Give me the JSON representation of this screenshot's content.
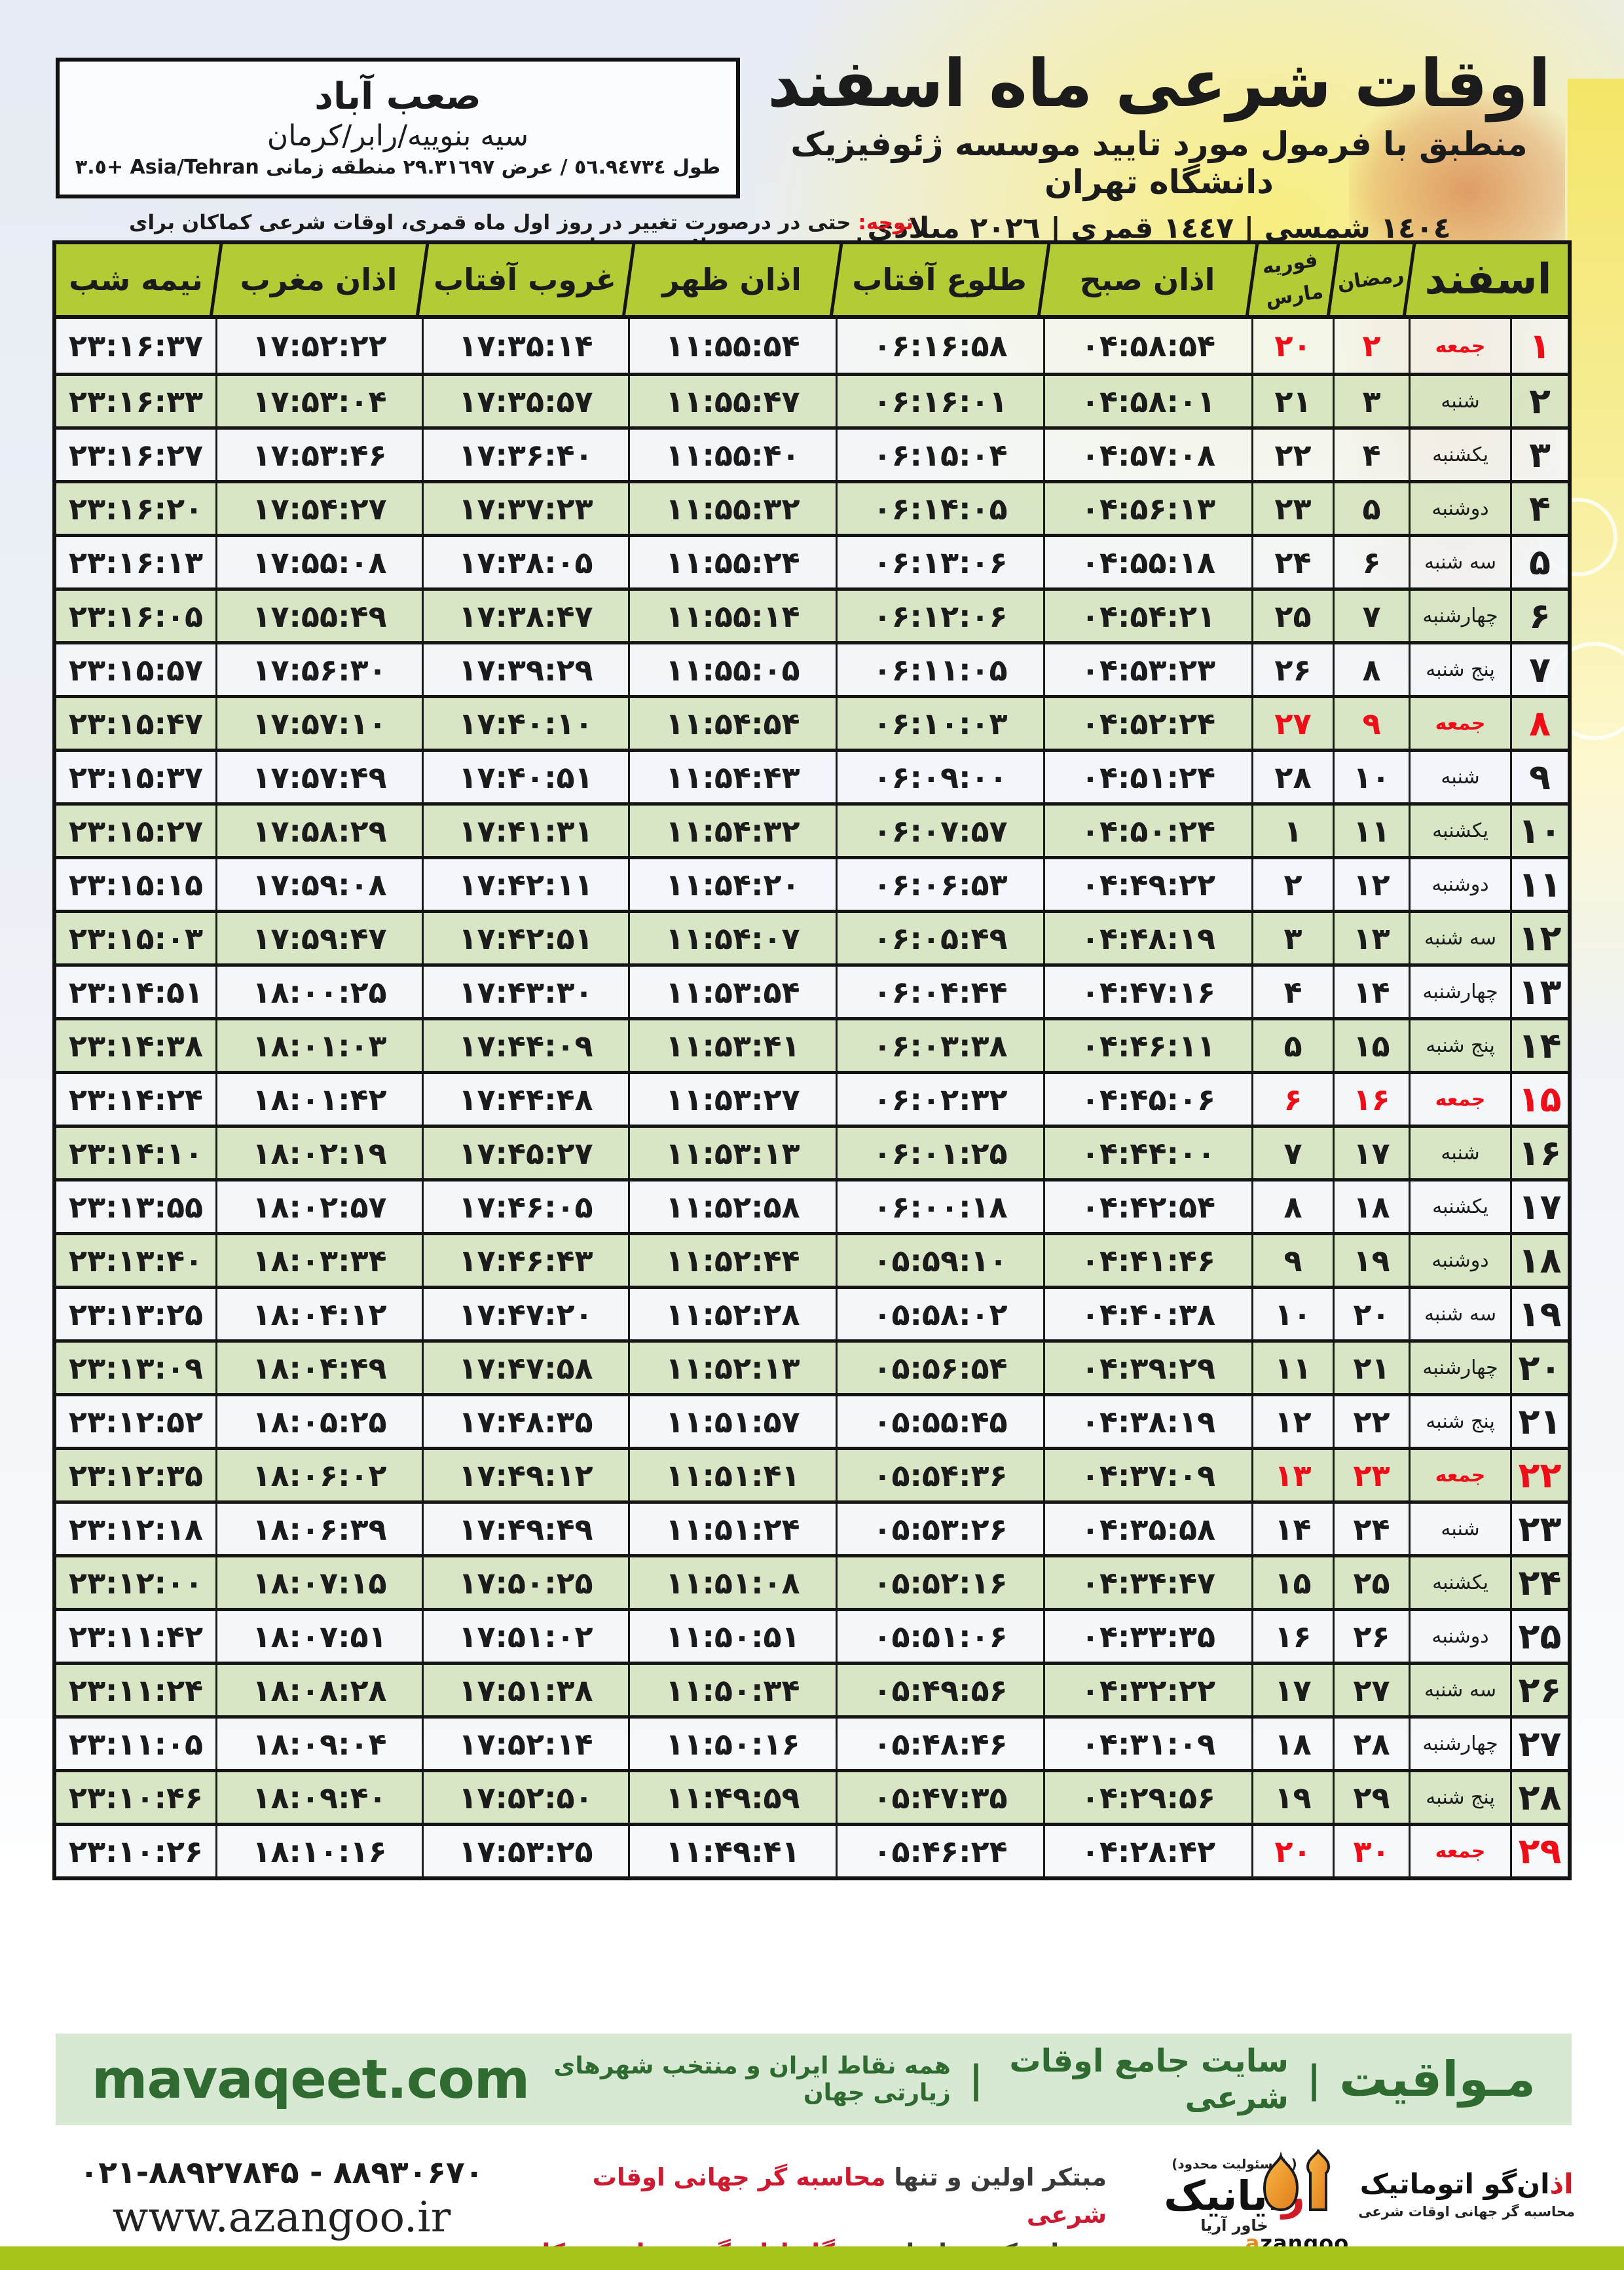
{
  "location": {
    "city": "صعب آباد",
    "region": "سیه بنوییه/رابر/کرمان",
    "coords": "طول ٥٦.٩٤٧٣٤ / عرض ٢٩.٣١٦٩٧ منطقه زمانی Asia/Tehran +٣.٥"
  },
  "header": {
    "title": "اوقات شرعی ماه اسفند",
    "subtitle": "منطبق با فرمول مورد تایید موسسه ژئوفیزیک دانشگاه تهران",
    "years": "١٤٠٤ شمسی | ١٤٤٧ قمری | ٢٠٢٦ میلادی"
  },
  "notice": {
    "label": "توجه:",
    "text": " حتی در درصورت تغییر در روز اول ماه قمری، اوقات شرعی کماکان برای روزهای شمسی و میلادی معتبر است."
  },
  "table": {
    "columns": {
      "month": "اسفند",
      "ramadan": "رمضان",
      "feb": "فوریه",
      "mar": "مارس",
      "sobh": "اذان صبح",
      "tolu": "طلوع آفتاب",
      "zohr": "اذان ظهر",
      "ghorub": "غروب آفتاب",
      "maghreb": "اذان مغرب",
      "nimeshab": "نیمه شب"
    },
    "col_keys": [
      "day",
      "weekday",
      "ramadan",
      "febmar",
      "sobh",
      "tolu",
      "zohr",
      "ghorub",
      "maghreb",
      "nimeshab"
    ],
    "rows": [
      {
        "day": "۱",
        "weekday": "جمعه",
        "ramadan": "۲",
        "febmar": "۲۰",
        "sobh": "۰۴:۵۸:۵۴",
        "tolu": "۰۶:۱۶:۵۸",
        "zohr": "۱۱:۵۵:۵۴",
        "ghorub": "۱۷:۳۵:۱۴",
        "maghreb": "۱۷:۵۲:۲۲",
        "nimeshab": "۲۳:۱۶:۳۷",
        "holiday": true
      },
      {
        "day": "۲",
        "weekday": "شنبه",
        "ramadan": "۳",
        "febmar": "۲۱",
        "sobh": "۰۴:۵۸:۰۱",
        "tolu": "۰۶:۱۶:۰۱",
        "zohr": "۱۱:۵۵:۴۷",
        "ghorub": "۱۷:۳۵:۵۷",
        "maghreb": "۱۷:۵۳:۰۴",
        "nimeshab": "۲۳:۱۶:۳۳",
        "holiday": false
      },
      {
        "day": "۳",
        "weekday": "یکشنبه",
        "ramadan": "۴",
        "febmar": "۲۲",
        "sobh": "۰۴:۵۷:۰۸",
        "tolu": "۰۶:۱۵:۰۴",
        "zohr": "۱۱:۵۵:۴۰",
        "ghorub": "۱۷:۳۶:۴۰",
        "maghreb": "۱۷:۵۳:۴۶",
        "nimeshab": "۲۳:۱۶:۲۷",
        "holiday": false
      },
      {
        "day": "۴",
        "weekday": "دوشنبه",
        "ramadan": "۵",
        "febmar": "۲۳",
        "sobh": "۰۴:۵۶:۱۳",
        "tolu": "۰۶:۱۴:۰۵",
        "zohr": "۱۱:۵۵:۳۲",
        "ghorub": "۱۷:۳۷:۲۳",
        "maghreb": "۱۷:۵۴:۲۷",
        "nimeshab": "۲۳:۱۶:۲۰",
        "holiday": false
      },
      {
        "day": "۵",
        "weekday": "سه شنبه",
        "ramadan": "۶",
        "febmar": "۲۴",
        "sobh": "۰۴:۵۵:۱۸",
        "tolu": "۰۶:۱۳:۰۶",
        "zohr": "۱۱:۵۵:۲۴",
        "ghorub": "۱۷:۳۸:۰۵",
        "maghreb": "۱۷:۵۵:۰۸",
        "nimeshab": "۲۳:۱۶:۱۳",
        "holiday": false
      },
      {
        "day": "۶",
        "weekday": "چهارشنبه",
        "ramadan": "۷",
        "febmar": "۲۵",
        "sobh": "۰۴:۵۴:۲۱",
        "tolu": "۰۶:۱۲:۰۶",
        "zohr": "۱۱:۵۵:۱۴",
        "ghorub": "۱۷:۳۸:۴۷",
        "maghreb": "۱۷:۵۵:۴۹",
        "nimeshab": "۲۳:۱۶:۰۵",
        "holiday": false
      },
      {
        "day": "۷",
        "weekday": "پنج شنبه",
        "ramadan": "۸",
        "febmar": "۲۶",
        "sobh": "۰۴:۵۳:۲۳",
        "tolu": "۰۶:۱۱:۰۵",
        "zohr": "۱۱:۵۵:۰۵",
        "ghorub": "۱۷:۳۹:۲۹",
        "maghreb": "۱۷:۵۶:۳۰",
        "nimeshab": "۲۳:۱۵:۵۷",
        "holiday": false
      },
      {
        "day": "۸",
        "weekday": "جمعه",
        "ramadan": "۹",
        "febmar": "۲۷",
        "sobh": "۰۴:۵۲:۲۴",
        "tolu": "۰۶:۱۰:۰۳",
        "zohr": "۱۱:۵۴:۵۴",
        "ghorub": "۱۷:۴۰:۱۰",
        "maghreb": "۱۷:۵۷:۱۰",
        "nimeshab": "۲۳:۱۵:۴۷",
        "holiday": true
      },
      {
        "day": "۹",
        "weekday": "شنبه",
        "ramadan": "۱۰",
        "febmar": "۲۸",
        "sobh": "۰۴:۵۱:۲۴",
        "tolu": "۰۶:۰۹:۰۰",
        "zohr": "۱۱:۵۴:۴۳",
        "ghorub": "۱۷:۴۰:۵۱",
        "maghreb": "۱۷:۵۷:۴۹",
        "nimeshab": "۲۳:۱۵:۳۷",
        "holiday": false
      },
      {
        "day": "۱۰",
        "weekday": "یکشنبه",
        "ramadan": "۱۱",
        "febmar": "۱",
        "sobh": "۰۴:۵۰:۲۴",
        "tolu": "۰۶:۰۷:۵۷",
        "zohr": "۱۱:۵۴:۳۲",
        "ghorub": "۱۷:۴۱:۳۱",
        "maghreb": "۱۷:۵۸:۲۹",
        "nimeshab": "۲۳:۱۵:۲۷",
        "holiday": false
      },
      {
        "day": "۱۱",
        "weekday": "دوشنبه",
        "ramadan": "۱۲",
        "febmar": "۲",
        "sobh": "۰۴:۴۹:۲۲",
        "tolu": "۰۶:۰۶:۵۳",
        "zohr": "۱۱:۵۴:۲۰",
        "ghorub": "۱۷:۴۲:۱۱",
        "maghreb": "۱۷:۵۹:۰۸",
        "nimeshab": "۲۳:۱۵:۱۵",
        "holiday": false
      },
      {
        "day": "۱۲",
        "weekday": "سه شنبه",
        "ramadan": "۱۳",
        "febmar": "۳",
        "sobh": "۰۴:۴۸:۱۹",
        "tolu": "۰۶:۰۵:۴۹",
        "zohr": "۱۱:۵۴:۰۷",
        "ghorub": "۱۷:۴۲:۵۱",
        "maghreb": "۱۷:۵۹:۴۷",
        "nimeshab": "۲۳:۱۵:۰۳",
        "holiday": false
      },
      {
        "day": "۱۳",
        "weekday": "چهارشنبه",
        "ramadan": "۱۴",
        "febmar": "۴",
        "sobh": "۰۴:۴۷:۱۶",
        "tolu": "۰۶:۰۴:۴۴",
        "zohr": "۱۱:۵۳:۵۴",
        "ghorub": "۱۷:۴۳:۳۰",
        "maghreb": "۱۸:۰۰:۲۵",
        "nimeshab": "۲۳:۱۴:۵۱",
        "holiday": false
      },
      {
        "day": "۱۴",
        "weekday": "پنج شنبه",
        "ramadan": "۱۵",
        "febmar": "۵",
        "sobh": "۰۴:۴۶:۱۱",
        "tolu": "۰۶:۰۳:۳۸",
        "zohr": "۱۱:۵۳:۴۱",
        "ghorub": "۱۷:۴۴:۰۹",
        "maghreb": "۱۸:۰۱:۰۳",
        "nimeshab": "۲۳:۱۴:۳۸",
        "holiday": false
      },
      {
        "day": "۱۵",
        "weekday": "جمعه",
        "ramadan": "۱۶",
        "febmar": "۶",
        "sobh": "۰۴:۴۵:۰۶",
        "tolu": "۰۶:۰۲:۳۲",
        "zohr": "۱۱:۵۳:۲۷",
        "ghorub": "۱۷:۴۴:۴۸",
        "maghreb": "۱۸:۰۱:۴۲",
        "nimeshab": "۲۳:۱۴:۲۴",
        "holiday": true
      },
      {
        "day": "۱۶",
        "weekday": "شنبه",
        "ramadan": "۱۷",
        "febmar": "۷",
        "sobh": "۰۴:۴۴:۰۰",
        "tolu": "۰۶:۰۱:۲۵",
        "zohr": "۱۱:۵۳:۱۳",
        "ghorub": "۱۷:۴۵:۲۷",
        "maghreb": "۱۸:۰۲:۱۹",
        "nimeshab": "۲۳:۱۴:۱۰",
        "holiday": false
      },
      {
        "day": "۱۷",
        "weekday": "یکشنبه",
        "ramadan": "۱۸",
        "febmar": "۸",
        "sobh": "۰۴:۴۲:۵۴",
        "tolu": "۰۶:۰۰:۱۸",
        "zohr": "۱۱:۵۲:۵۸",
        "ghorub": "۱۷:۴۶:۰۵",
        "maghreb": "۱۸:۰۲:۵۷",
        "nimeshab": "۲۳:۱۳:۵۵",
        "holiday": false
      },
      {
        "day": "۱۸",
        "weekday": "دوشنبه",
        "ramadan": "۱۹",
        "febmar": "۹",
        "sobh": "۰۴:۴۱:۴۶",
        "tolu": "۰۵:۵۹:۱۰",
        "zohr": "۱۱:۵۲:۴۴",
        "ghorub": "۱۷:۴۶:۴۳",
        "maghreb": "۱۸:۰۳:۳۴",
        "nimeshab": "۲۳:۱۳:۴۰",
        "holiday": false
      },
      {
        "day": "۱۹",
        "weekday": "سه شنبه",
        "ramadan": "۲۰",
        "febmar": "۱۰",
        "sobh": "۰۴:۴۰:۳۸",
        "tolu": "۰۵:۵۸:۰۲",
        "zohr": "۱۱:۵۲:۲۸",
        "ghorub": "۱۷:۴۷:۲۰",
        "maghreb": "۱۸:۰۴:۱۲",
        "nimeshab": "۲۳:۱۳:۲۵",
        "holiday": false
      },
      {
        "day": "۲۰",
        "weekday": "چهارشنبه",
        "ramadan": "۲۱",
        "febmar": "۱۱",
        "sobh": "۰۴:۳۹:۲۹",
        "tolu": "۰۵:۵۶:۵۴",
        "zohr": "۱۱:۵۲:۱۳",
        "ghorub": "۱۷:۴۷:۵۸",
        "maghreb": "۱۸:۰۴:۴۹",
        "nimeshab": "۲۳:۱۳:۰۹",
        "holiday": false
      },
      {
        "day": "۲۱",
        "weekday": "پنج شنبه",
        "ramadan": "۲۲",
        "febmar": "۱۲",
        "sobh": "۰۴:۳۸:۱۹",
        "tolu": "۰۵:۵۵:۴۵",
        "zohr": "۱۱:۵۱:۵۷",
        "ghorub": "۱۷:۴۸:۳۵",
        "maghreb": "۱۸:۰۵:۲۵",
        "nimeshab": "۲۳:۱۲:۵۲",
        "holiday": false
      },
      {
        "day": "۲۲",
        "weekday": "جمعه",
        "ramadan": "۲۳",
        "febmar": "۱۳",
        "sobh": "۰۴:۳۷:۰۹",
        "tolu": "۰۵:۵۴:۳۶",
        "zohr": "۱۱:۵۱:۴۱",
        "ghorub": "۱۷:۴۹:۱۲",
        "maghreb": "۱۸:۰۶:۰۲",
        "nimeshab": "۲۳:۱۲:۳۵",
        "holiday": true
      },
      {
        "day": "۲۳",
        "weekday": "شنبه",
        "ramadan": "۲۴",
        "febmar": "۱۴",
        "sobh": "۰۴:۳۵:۵۸",
        "tolu": "۰۵:۵۳:۲۶",
        "zohr": "۱۱:۵۱:۲۴",
        "ghorub": "۱۷:۴۹:۴۹",
        "maghreb": "۱۸:۰۶:۳۹",
        "nimeshab": "۲۳:۱۲:۱۸",
        "holiday": false
      },
      {
        "day": "۲۴",
        "weekday": "یکشنبه",
        "ramadan": "۲۵",
        "febmar": "۱۵",
        "sobh": "۰۴:۳۴:۴۷",
        "tolu": "۰۵:۵۲:۱۶",
        "zohr": "۱۱:۵۱:۰۸",
        "ghorub": "۱۷:۵۰:۲۵",
        "maghreb": "۱۸:۰۷:۱۵",
        "nimeshab": "۲۳:۱۲:۰۰",
        "holiday": false
      },
      {
        "day": "۲۵",
        "weekday": "دوشنبه",
        "ramadan": "۲۶",
        "febmar": "۱۶",
        "sobh": "۰۴:۳۳:۳۵",
        "tolu": "۰۵:۵۱:۰۶",
        "zohr": "۱۱:۵۰:۵۱",
        "ghorub": "۱۷:۵۱:۰۲",
        "maghreb": "۱۸:۰۷:۵۱",
        "nimeshab": "۲۳:۱۱:۴۲",
        "holiday": false
      },
      {
        "day": "۲۶",
        "weekday": "سه شنبه",
        "ramadan": "۲۷",
        "febmar": "۱۷",
        "sobh": "۰۴:۳۲:۲۲",
        "tolu": "۰۵:۴۹:۵۶",
        "zohr": "۱۱:۵۰:۳۴",
        "ghorub": "۱۷:۵۱:۳۸",
        "maghreb": "۱۸:۰۸:۲۸",
        "nimeshab": "۲۳:۱۱:۲۴",
        "holiday": false
      },
      {
        "day": "۲۷",
        "weekday": "چهارشنبه",
        "ramadan": "۲۸",
        "febmar": "۱۸",
        "sobh": "۰۴:۳۱:۰۹",
        "tolu": "۰۵:۴۸:۴۶",
        "zohr": "۱۱:۵۰:۱۶",
        "ghorub": "۱۷:۵۲:۱۴",
        "maghreb": "۱۸:۰۹:۰۴",
        "nimeshab": "۲۳:۱۱:۰۵",
        "holiday": false
      },
      {
        "day": "۲۸",
        "weekday": "پنج شنبه",
        "ramadan": "۲۹",
        "febmar": "۱۹",
        "sobh": "۰۴:۲۹:۵۶",
        "tolu": "۰۵:۴۷:۳۵",
        "zohr": "۱۱:۴۹:۵۹",
        "ghorub": "۱۷:۵۲:۵۰",
        "maghreb": "۱۸:۰۹:۴۰",
        "nimeshab": "۲۳:۱۰:۴۶",
        "holiday": false
      },
      {
        "day": "۲۹",
        "weekday": "جمعه",
        "ramadan": "۳۰",
        "febmar": "۲۰",
        "sobh": "۰۴:۲۸:۴۲",
        "tolu": "۰۵:۴۶:۲۴",
        "zohr": "۱۱:۴۹:۴۱",
        "ghorub": "۱۷:۵۳:۲۵",
        "maghreb": "۱۸:۱۰:۱۶",
        "nimeshab": "۲۳:۱۰:۲۶",
        "holiday": true
      }
    ]
  },
  "promo": {
    "brand": "مـواقیت",
    "sep": "|",
    "tagline1": "سایت جامع اوقات شرعی",
    "tagline2": "همه نقاط ایران و منتخب شهرهای زیارتی جهان",
    "site": "mavaqeet.com"
  },
  "footer": {
    "phone": "۰۲۱-۸۸۹۲۷۸۴۵ - ۸۸۹۳۰۶۷۰",
    "site": "www.azangoo.ir",
    "credit1_dark": "مبتکر اولین و تنها",
    "credit1_red": "محاسبه گر جهانی اوقات شرعی",
    "credit2_dark": "و تولید کننده انواع",
    "credit2_red": "دستگاه اذان گوی تمام خودکار ماهواره ای",
    "rayanik": {
      "note": "(بامسئولیت محدود)",
      "initial": "ر",
      "name": "ایانیک",
      "sub": "خاور آریا"
    },
    "azangoo": {
      "fa_red": "اذ",
      "fa_rest": "ان‌گو اتوماتیک",
      "sub": "محاسبه گر جهانی اوقات شرعی",
      "en_a": "a",
      "en_rest": "zangoo"
    }
  },
  "colors": {
    "header_green": "#b3cc36",
    "row_green": "#d7e5c3",
    "holiday_red": "#ef0d18",
    "promo_bg": "#d8e9d3",
    "promo_text": "#2f6b31",
    "bottom_bar": "#a6c51b",
    "azangoo_orange": "#e88b1a"
  }
}
